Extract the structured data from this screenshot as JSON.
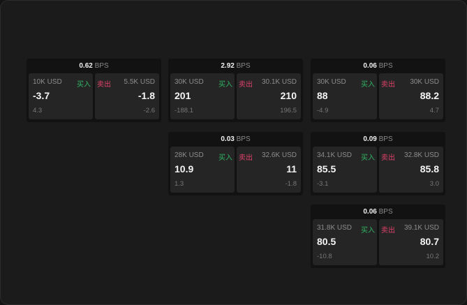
{
  "unit": "BPS",
  "buy_label": "买入",
  "sell_label": "卖出",
  "colors": {
    "buy": "#2fb463",
    "sell": "#e0416b"
  },
  "widgets": [
    {
      "spread": "0.62",
      "bid": {
        "size": "10K USD",
        "price": "-3.7",
        "change": "4.3"
      },
      "ask": {
        "size": "5.5K USD",
        "price": "-1.8",
        "change": "-2.6"
      }
    },
    {
      "spread": "2.92",
      "bid": {
        "size": "30K USD",
        "price": "201",
        "change": "-188.1"
      },
      "ask": {
        "size": "30.1K USD",
        "price": "210",
        "change": "196.5"
      }
    },
    {
      "spread": "0.06",
      "bid": {
        "size": "30K USD",
        "price": "88",
        "change": "-4.9"
      },
      "ask": {
        "size": "30K USD",
        "price": "88.2",
        "change": "4.7"
      }
    },
    {
      "spread": "0.03",
      "bid": {
        "size": "28K USD",
        "price": "10.9",
        "change": "1.3"
      },
      "ask": {
        "size": "32.6K USD",
        "price": "11",
        "change": "-1.8"
      }
    },
    {
      "spread": "0.09",
      "bid": {
        "size": "34.1K USD",
        "price": "85.5",
        "change": "-3.1"
      },
      "ask": {
        "size": "32.8K USD",
        "price": "85.8",
        "change": "3.0"
      }
    },
    {
      "spread": "0.06",
      "bid": {
        "size": "31.8K USD",
        "price": "80.5",
        "change": "-10.8"
      },
      "ask": {
        "size": "39.1K USD",
        "price": "80.7",
        "change": "10.2"
      }
    }
  ]
}
